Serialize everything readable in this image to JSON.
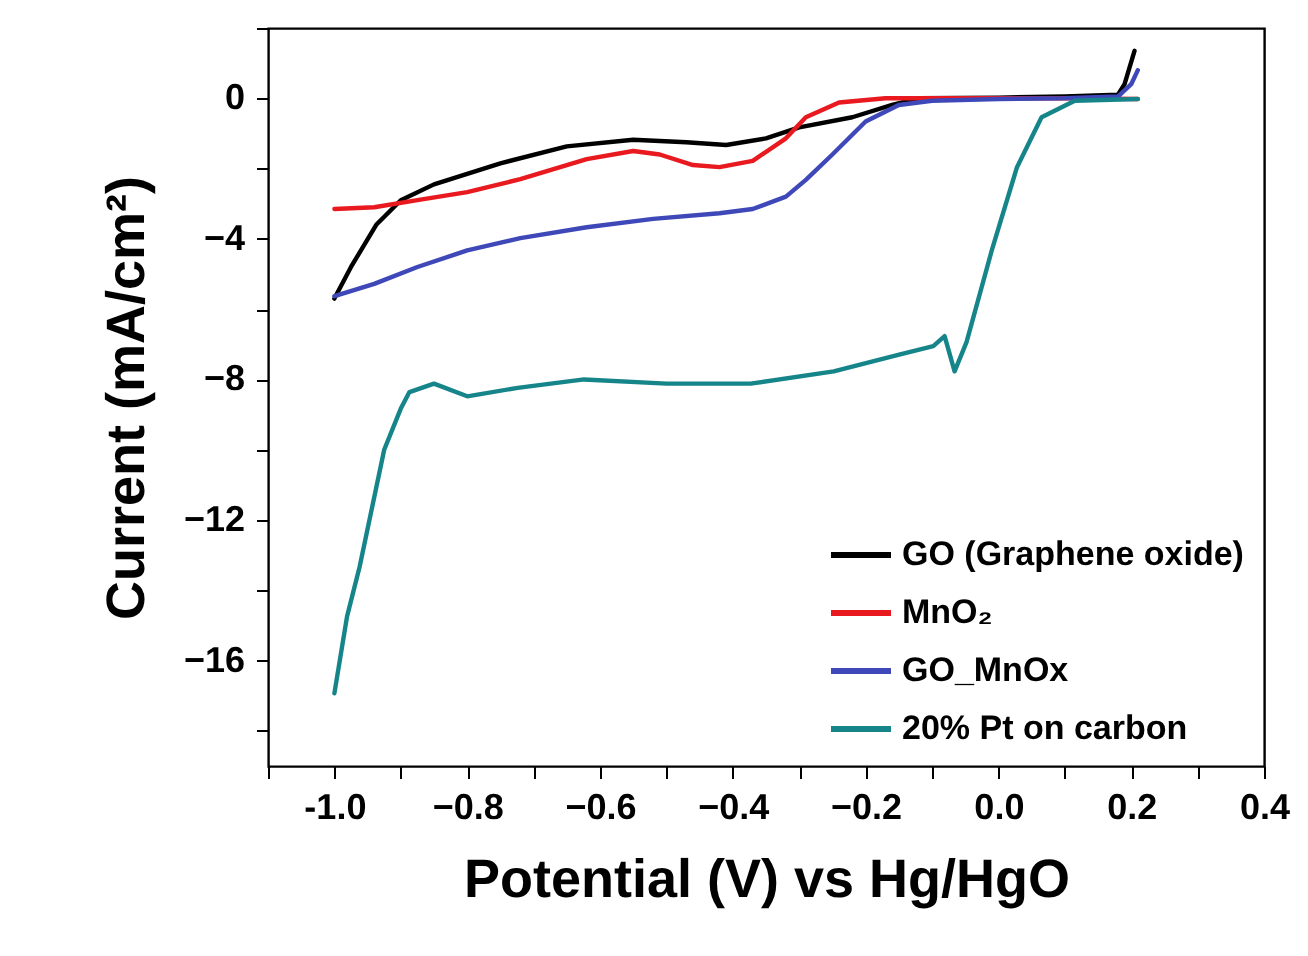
{
  "chart_data": {
    "type": "line",
    "xlabel": "Potential (V) vs Hg/HgO",
    "ylabel": "Current (mA/cm²)",
    "xlim": [
      -1.1,
      0.4
    ],
    "ylim": [
      -19,
      2
    ],
    "xticks": [
      {
        "value": -1.1,
        "label": null
      },
      {
        "value": -1,
        "label": "-1.0"
      },
      {
        "value": -0.9,
        "label": null
      },
      -0.8,
      {
        "value": -0.7,
        "label": null
      },
      -0.6,
      {
        "value": -0.5,
        "label": null
      },
      -0.4,
      {
        "value": -0.3,
        "label": null
      },
      -0.2,
      {
        "value": -0.1,
        "label": null
      },
      {
        "value": 0,
        "label": "0.0"
      },
      {
        "value": 0.1,
        "label": null
      },
      0.2,
      {
        "value": 0.3,
        "label": null
      },
      0.4
    ],
    "yticks": [
      {
        "value": -18,
        "label": null
      },
      -16,
      {
        "value": -14,
        "label": null
      },
      -12,
      {
        "value": -10,
        "label": null
      },
      -8,
      {
        "value": -6,
        "label": null
      },
      -4,
      {
        "value": -2,
        "label": null
      },
      0,
      {
        "value": 2,
        "label": null
      }
    ],
    "grid": false,
    "legend": "bottom right",
    "line_style": "solid",
    "series": [
      {
        "name": "GO (Graphene oxide)",
        "color": "#000000",
        "x": [
          -1,
          -0.975,
          -0.937,
          -0.9,
          -0.85,
          -0.75,
          -0.65,
          -0.55,
          -0.47,
          -0.41,
          -0.35,
          -0.3,
          -0.22,
          -0.16,
          -0.12,
          0,
          0.1,
          0.18,
          0.19,
          0.205
        ],
        "values": [
          -5.7,
          -4.8,
          -3.6,
          -2.9,
          -2.45,
          -1.85,
          -1.37,
          -1.18,
          -1.25,
          -1.33,
          -1.14,
          -0.83,
          -0.54,
          -0.19,
          0,
          0.02,
          0.05,
          0.1,
          0.4,
          1.35
        ]
      },
      {
        "name": "MnO₂",
        "color": "#e8191f",
        "x": [
          -1,
          -0.94,
          -0.875,
          -0.8,
          -0.72,
          -0.62,
          -0.55,
          -0.51,
          -0.46,
          -0.42,
          -0.37,
          -0.32,
          -0.29,
          -0.24,
          -0.17,
          0,
          0.1,
          0.21
        ],
        "values": [
          -3.15,
          -3.1,
          -2.9,
          -2.67,
          -2.3,
          -1.73,
          -1.5,
          -1.6,
          -1.9,
          -1.96,
          -1.78,
          -1.14,
          -0.54,
          -0.12,
          0,
          0,
          0,
          -0.02
        ]
      },
      {
        "name": "GO_MnOx",
        "color": "#3f48b8",
        "x": [
          -1,
          -0.94,
          -0.875,
          -0.8,
          -0.72,
          -0.62,
          -0.52,
          -0.42,
          -0.37,
          -0.32,
          -0.29,
          -0.25,
          -0.2,
          -0.15,
          -0.1,
          0,
          0.1,
          0.18,
          0.2,
          0.21
        ],
        "values": [
          -5.63,
          -5.28,
          -4.8,
          -4.33,
          -3.98,
          -3.67,
          -3.43,
          -3.27,
          -3.15,
          -2.8,
          -2.32,
          -1.6,
          -0.66,
          -0.19,
          -0.07,
          -0.02,
          0,
          0.05,
          0.4,
          0.8
        ]
      },
      {
        "name": "20% Pt on carbon",
        "color": "#16858a",
        "x": [
          -1,
          -0.981,
          -0.962,
          -0.925,
          -0.9,
          -0.887,
          -0.85,
          -0.8,
          -0.724,
          -0.624,
          -0.5,
          -0.373,
          -0.248,
          -0.148,
          -0.098,
          -0.081,
          -0.066,
          -0.048,
          -0.01,
          0.028,
          0.065,
          0.115,
          0.21
        ],
        "values": [
          -16.93,
          -14.75,
          -13.33,
          -10.0,
          -8.83,
          -8.36,
          -8.12,
          -8.48,
          -8.24,
          -8.0,
          -8.12,
          -8.12,
          -7.77,
          -7.29,
          -7.05,
          -6.77,
          -7.77,
          -6.94,
          -4.33,
          -1.96,
          -0.54,
          -0.07,
          -0.02
        ]
      }
    ]
  }
}
